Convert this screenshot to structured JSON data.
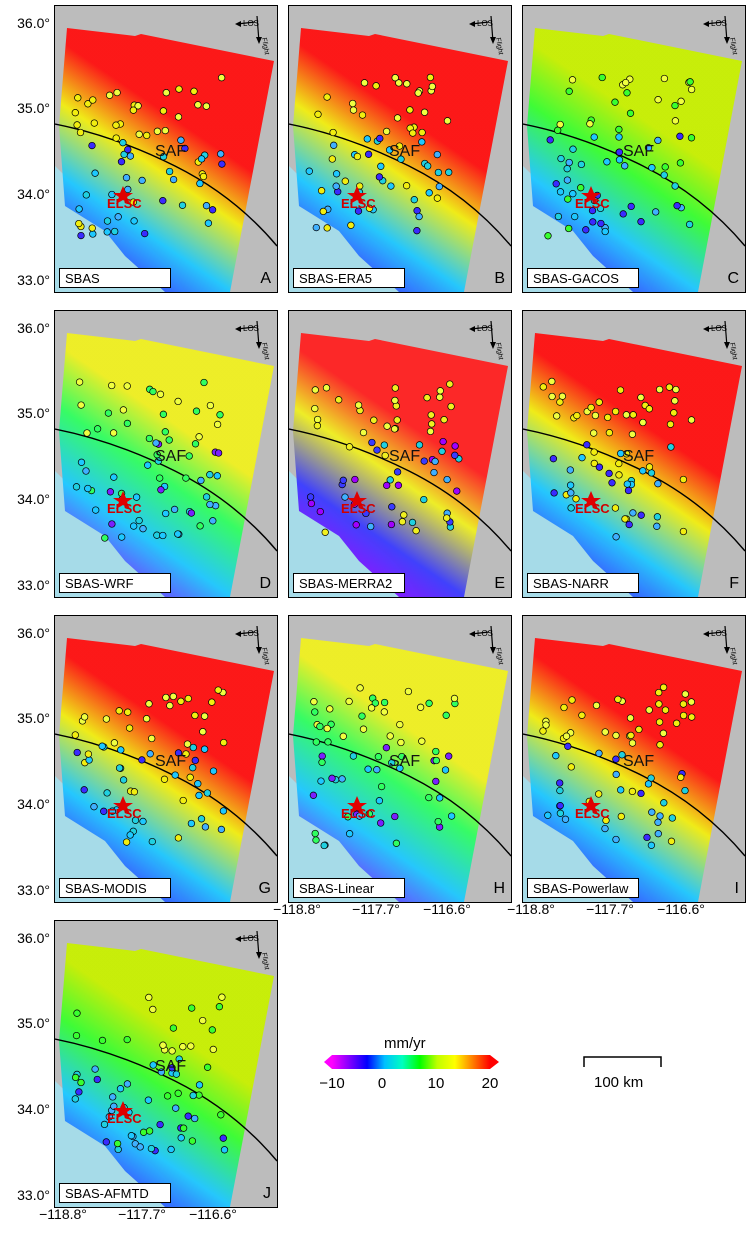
{
  "panels": [
    {
      "name": "SBAS",
      "letter": "A",
      "style": "redNE"
    },
    {
      "name": "SBAS-ERA5",
      "letter": "B",
      "style": "redNE"
    },
    {
      "name": "SBAS-GACOS",
      "letter": "C",
      "style": "yellowNE"
    },
    {
      "name": "SBAS-WRF",
      "letter": "D",
      "style": "greenMix"
    },
    {
      "name": "SBAS-MERRA2",
      "letter": "E",
      "style": "blueSouth"
    },
    {
      "name": "SBAS-NARR",
      "letter": "F",
      "style": "redNE"
    },
    {
      "name": "SBAS-MODIS",
      "letter": "G",
      "style": "redNE"
    },
    {
      "name": "SBAS-Linear",
      "letter": "H",
      "style": "greenMix"
    },
    {
      "name": "SBAS-Powerlaw",
      "letter": "I",
      "style": "redNE"
    },
    {
      "name": "SBAS-AFMTD",
      "letter": "J",
      "style": "yellowNE"
    }
  ],
  "map_labels": {
    "fault": "SAF",
    "station": "ELSC",
    "los": "LOS",
    "flight": "Flight"
  },
  "lat_ticks": [
    "36.0°",
    "35.0°",
    "34.0°",
    "33.0°"
  ],
  "lon_ticks": [
    "−118.8°",
    "−117.7°",
    "−116.6°"
  ],
  "colorbar": {
    "title": "mm/yr",
    "ticks": [
      "−10",
      "0",
      "10",
      "20"
    ],
    "colors": [
      "#ff00ff",
      "#8000ff",
      "#0000ff",
      "#00c0ff",
      "#00ffc0",
      "#00ff00",
      "#c0ff00",
      "#ffff00",
      "#ff8000",
      "#ff0000"
    ]
  },
  "scale_bar": {
    "label": "100 km"
  }
}
